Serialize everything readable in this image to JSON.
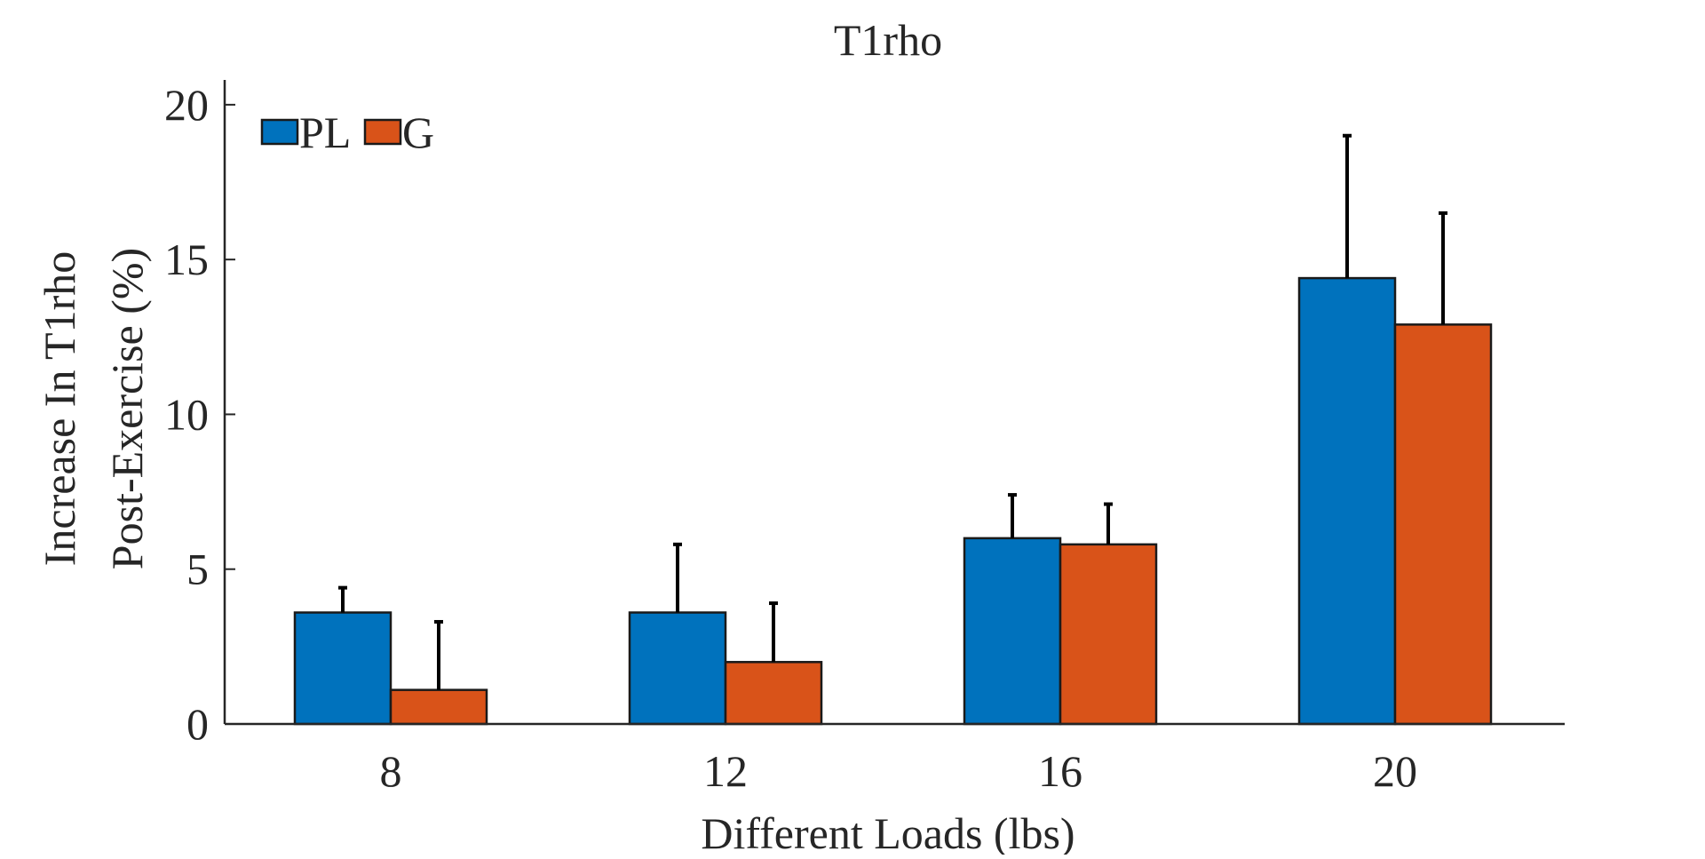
{
  "chart_data": {
    "type": "bar",
    "title": "T1rho",
    "xlabel": "Different Loads (lbs)",
    "ylabel_line1": "Increase In T1rho",
    "ylabel_line2": "Post-Exercise (%)",
    "categories": [
      "8",
      "12",
      "16",
      "20"
    ],
    "series": [
      {
        "name": "PL",
        "color": "#0072BD",
        "values": [
          3.6,
          3.6,
          6.0,
          14.4
        ],
        "errors": [
          0.8,
          2.2,
          1.4,
          4.6
        ]
      },
      {
        "name": "G",
        "color": "#D95319",
        "values": [
          1.1,
          2.0,
          5.8,
          12.9
        ],
        "errors": [
          2.2,
          1.9,
          1.3,
          3.6
        ]
      }
    ],
    "ylim": [
      0,
      20.8
    ],
    "yticks": [
      0,
      5,
      10,
      15,
      20
    ],
    "legend_position": "top-left",
    "grid": false
  }
}
